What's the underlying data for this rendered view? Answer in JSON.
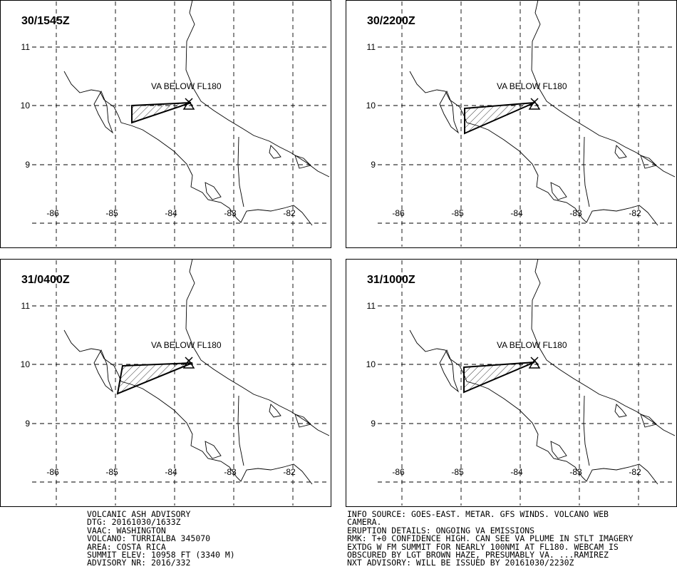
{
  "panels": [
    {
      "time": "30/1545Z"
    },
    {
      "time": "30/2200Z"
    },
    {
      "time": "31/0400Z"
    },
    {
      "time": "31/1000Z"
    }
  ],
  "lat_labels": [
    "11",
    "10",
    "9"
  ],
  "lon_labels": [
    "-86",
    "-85",
    "-84",
    "-83",
    "-82"
  ],
  "plume_label": "VA BELOW FL180",
  "advisory_left": [
    "VOLCANIC ASH ADVISORY",
    "DTG: 20161030/1633Z",
    "VAAC: WASHINGTON",
    "VOLCANO: TURRIALBA 345070",
    "AREA: COSTA RICA",
    "SUMMIT ELEV: 10958 FT (3340 M)",
    "ADVISORY NR: 2016/332"
  ],
  "advisory_right": [
    "INFO SOURCE: GOES-EAST. METAR. GFS WINDS. VOLCANO WEB",
    "CAMERA.",
    "ERUPTION DETAILS: ONGOING VA EMISSIONS",
    "RMK: T+0 CONFIDENCE HIGH. CAN SEE VA PLUME IN STLT IMAGERY",
    "EXTDG W FM SUMMIT FOR NEARLY 100NMI AT FL180. WEBCAM IS",
    "OBSCURED BY LGT BROWN HAZE, PRESUMABLY VA. ...RAMIREZ",
    "NXT ADVISORY: WILL BE ISSUED BY 20161030/2230Z"
  ]
}
